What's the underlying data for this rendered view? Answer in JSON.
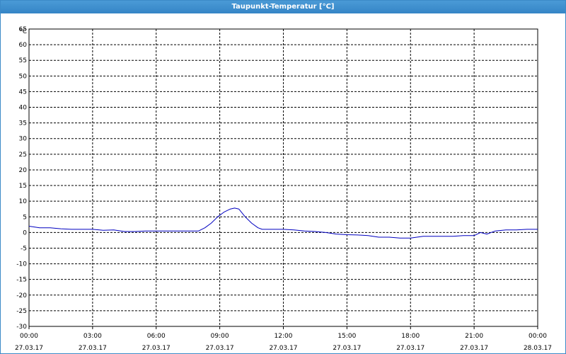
{
  "window": {
    "title": "Taupunkt-Temperatur [°C]"
  },
  "chart_data": {
    "type": "line",
    "title": "Taupunkt-Temperatur [°C]",
    "ylabel": "°C",
    "xlabel": "",
    "ylim": [
      -30,
      65
    ],
    "yticks": [
      65,
      60,
      55,
      50,
      45,
      40,
      35,
      30,
      25,
      20,
      15,
      10,
      5,
      0,
      -5,
      -10,
      -15,
      -20,
      -25,
      -30
    ],
    "grid": true,
    "x_time_labels": [
      "00:00",
      "03:00",
      "06:00",
      "09:00",
      "12:00",
      "15:00",
      "18:00",
      "21:00",
      "00:00"
    ],
    "x_date_labels": [
      "27.03.17",
      "27.03.17",
      "27.03.17",
      "27.03.17",
      "27.03.17",
      "27.03.17",
      "27.03.17",
      "27.03.17",
      "28.03.17"
    ],
    "xlim_hours": [
      0,
      24
    ],
    "series": [
      {
        "color": "#0000c0",
        "x": [
          0,
          0.5,
          1,
          1.5,
          2,
          2.5,
          3,
          3.5,
          4,
          4.5,
          5,
          5.5,
          6,
          6.5,
          7,
          7.5,
          8,
          8.3,
          8.6,
          8.9,
          9.2,
          9.5,
          9.7,
          9.9,
          10.2,
          10.5,
          10.8,
          11,
          11.5,
          12,
          12.5,
          13,
          13.5,
          14,
          14.5,
          15,
          15.5,
          16,
          16.5,
          17,
          17.5,
          18,
          18.3,
          18.6,
          19,
          19.5,
          20,
          20.5,
          21,
          21.3,
          21.6,
          22,
          22.5,
          23,
          23.5,
          24
        ],
        "y": [
          2,
          1.5,
          1.5,
          1.2,
          1,
          1,
          1,
          0.7,
          0.8,
          0.3,
          0.3,
          0.5,
          0.5,
          0.5,
          0.5,
          0.5,
          0.5,
          1.5,
          3,
          5,
          6.5,
          7.5,
          7.8,
          7.5,
          5,
          3,
          1.5,
          1,
          1,
          1,
          0.8,
          0.5,
          0.3,
          0,
          -0.5,
          -0.7,
          -0.8,
          -1,
          -1.5,
          -1.5,
          -1.8,
          -1.8,
          -1.5,
          -1.2,
          -1.2,
          -1.2,
          -1.2,
          -1,
          -1,
          0,
          -0.5,
          0.5,
          0.8,
          0.8,
          1,
          1
        ]
      }
    ]
  }
}
